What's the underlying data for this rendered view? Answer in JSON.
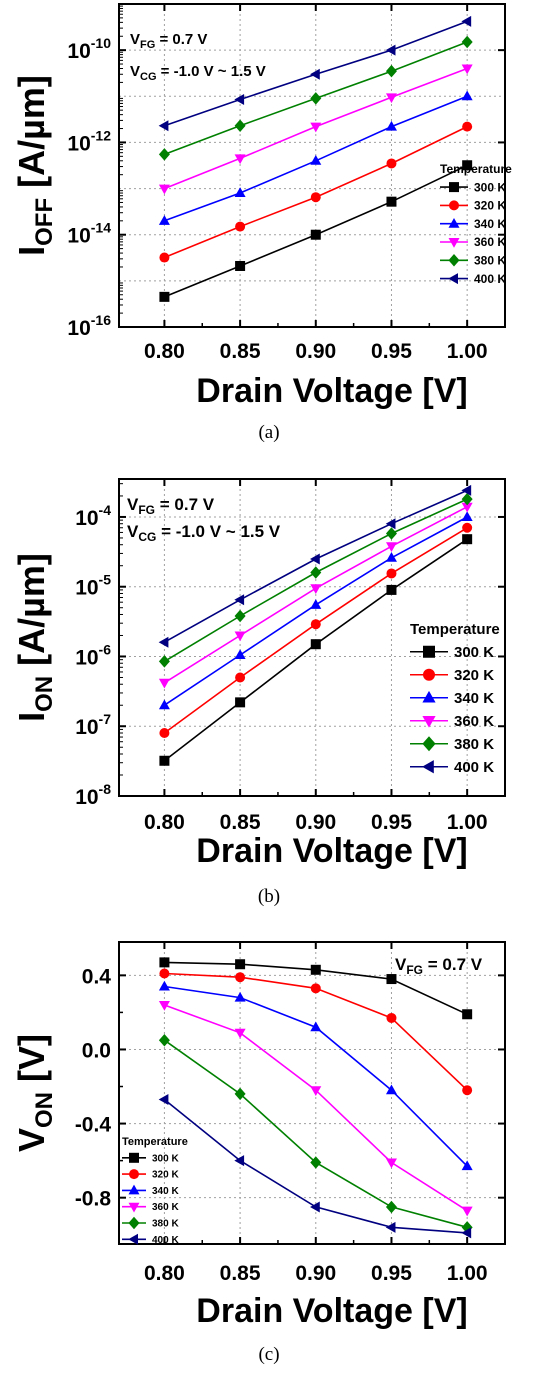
{
  "chart_data": [
    {
      "type": "line",
      "panel": "(a)",
      "caption": "(a)",
      "xlabel": "Drain Voltage [V]",
      "ylabel": "I",
      "ylabel_sub": "OFF",
      "ylabel_unit": " [A/µm]",
      "yscale": "log",
      "xlim": [
        0.77,
        1.025
      ],
      "ylim": [
        1e-16,
        1e-09
      ],
      "xticks": [
        0.8,
        0.85,
        0.9,
        0.95,
        1.0
      ],
      "xtick_labels": [
        "0.80",
        "0.85",
        "0.90",
        "0.95",
        "1.00"
      ],
      "yticks": [
        {
          "base": "10",
          "exp": "-16"
        },
        {
          "base": "10",
          "exp": "-14"
        },
        {
          "base": "10",
          "exp": "-12"
        },
        {
          "base": "10",
          "exp": "-10"
        }
      ],
      "grid": true,
      "annotations": [
        {
          "main": "V",
          "sub": "FG",
          "rest": " = 0.7 V"
        },
        {
          "main": "V",
          "sub": "CG",
          "rest": " = -1.0 V ~ 1.5 V"
        }
      ],
      "legend": {
        "title": "Temperature",
        "placement": "bottom-right"
      },
      "x": [
        0.8,
        0.85,
        0.9,
        0.95,
        1.0
      ],
      "series": [
        {
          "name": "300 K",
          "color": "#000000",
          "marker": "square",
          "values": [
            4.5e-16,
            2.1e-15,
            1e-14,
            5.2e-14,
            3.2e-13
          ]
        },
        {
          "name": "320 K",
          "color": "#ff0000",
          "marker": "circle",
          "values": [
            3.2e-15,
            1.5e-14,
            6.5e-14,
            3.5e-13,
            2.2e-12
          ]
        },
        {
          "name": "340 K",
          "color": "#0000ff",
          "marker": "triangle-up",
          "values": [
            2e-14,
            8e-14,
            4e-13,
            2.2e-12,
            1e-11
          ]
        },
        {
          "name": "360 K",
          "color": "#ff00ff",
          "marker": "triangle-down",
          "values": [
            1e-13,
            4.5e-13,
            2.2e-12,
            9.5e-12,
            4e-11
          ]
        },
        {
          "name": "380 K",
          "color": "#008000",
          "marker": "diamond",
          "values": [
            5.5e-13,
            2.3e-12,
            9e-12,
            3.5e-11,
            1.5e-10
          ]
        },
        {
          "name": "400 K",
          "color": "#000080",
          "marker": "triangle-left",
          "values": [
            2.3e-12,
            8.5e-12,
            3e-11,
            1e-10,
            4.2e-10
          ]
        }
      ]
    },
    {
      "type": "line",
      "panel": "(b)",
      "caption": "(b)",
      "xlabel": "Drain Voltage [V]",
      "ylabel": "I",
      "ylabel_sub": "ON",
      "ylabel_unit": " [A/µm]",
      "yscale": "log",
      "xlim": [
        0.77,
        1.025
      ],
      "ylim": [
        1e-08,
        0.00035
      ],
      "xticks": [
        0.8,
        0.85,
        0.9,
        0.95,
        1.0
      ],
      "xtick_labels": [
        "0.80",
        "0.85",
        "0.90",
        "0.95",
        "1.00"
      ],
      "yticks": [
        {
          "base": "10",
          "exp": "-8"
        },
        {
          "base": "10",
          "exp": "-7"
        },
        {
          "base": "10",
          "exp": "-6"
        },
        {
          "base": "10",
          "exp": "-5"
        },
        {
          "base": "10",
          "exp": "-4"
        }
      ],
      "grid": true,
      "annotations": [
        {
          "main": "V",
          "sub": "FG",
          "rest": " = 0.7 V"
        },
        {
          "main": "V",
          "sub": "CG",
          "rest": " = -1.0 V ~ 1.5 V"
        }
      ],
      "legend": {
        "title": "Temperature",
        "placement": "bottom-right"
      },
      "x": [
        0.8,
        0.85,
        0.9,
        0.95,
        1.0
      ],
      "series": [
        {
          "name": "300 K",
          "color": "#000000",
          "marker": "square",
          "values": [
            3.2e-08,
            2.2e-07,
            1.5e-06,
            9e-06,
            4.8e-05
          ]
        },
        {
          "name": "320 K",
          "color": "#ff0000",
          "marker": "circle",
          "values": [
            8e-08,
            5e-07,
            2.9e-06,
            1.55e-05,
            7e-05
          ]
        },
        {
          "name": "340 K",
          "color": "#0000ff",
          "marker": "triangle-up",
          "values": [
            2e-07,
            1.05e-06,
            5.5e-06,
            2.6e-05,
            0.0001
          ]
        },
        {
          "name": "360 K",
          "color": "#ff00ff",
          "marker": "triangle-down",
          "values": [
            4.2e-07,
            2e-06,
            9.5e-06,
            3.8e-05,
            0.00014
          ]
        },
        {
          "name": "380 K",
          "color": "#008000",
          "marker": "diamond",
          "values": [
            8.5e-07,
            3.8e-06,
            1.6e-05,
            5.8e-05,
            0.00018
          ]
        },
        {
          "name": "400 K",
          "color": "#000080",
          "marker": "triangle-left",
          "values": [
            1.6e-06,
            6.5e-06,
            2.5e-05,
            8e-05,
            0.00024
          ]
        }
      ]
    },
    {
      "type": "line",
      "panel": "(c)",
      "caption": "(c)",
      "xlabel": "Drain Voltage [V]",
      "ylabel": "V",
      "ylabel_sub": "ON",
      "ylabel_unit": " [V]",
      "yscale": "linear",
      "xlim": [
        0.77,
        1.025
      ],
      "ylim": [
        -1.05,
        0.58
      ],
      "xticks": [
        0.8,
        0.85,
        0.9,
        0.95,
        1.0
      ],
      "xtick_labels": [
        "0.80",
        "0.85",
        "0.90",
        "0.95",
        "1.00"
      ],
      "yticks_linear": [
        0.4,
        0.0,
        -0.4,
        -0.8
      ],
      "ytick_labels": [
        "0.4",
        "0.0",
        "-0.4",
        "-0.8"
      ],
      "grid": true,
      "annotations": [
        {
          "main": "V",
          "sub": "FG",
          "rest": " = 0.7 V"
        }
      ],
      "legend": {
        "title": "Temperature",
        "placement": "bottom-left"
      },
      "x": [
        0.8,
        0.85,
        0.9,
        0.95,
        1.0
      ],
      "series": [
        {
          "name": "300 K",
          "color": "#000000",
          "marker": "square",
          "values": [
            0.47,
            0.46,
            0.43,
            0.38,
            0.19
          ]
        },
        {
          "name": "320 K",
          "color": "#ff0000",
          "marker": "circle",
          "values": [
            0.41,
            0.39,
            0.33,
            0.17,
            -0.22
          ]
        },
        {
          "name": "340 K",
          "color": "#0000ff",
          "marker": "triangle-up",
          "values": [
            0.34,
            0.28,
            0.12,
            -0.22,
            -0.63
          ]
        },
        {
          "name": "360 K",
          "color": "#ff00ff",
          "marker": "triangle-down",
          "values": [
            0.24,
            0.09,
            -0.22,
            -0.61,
            -0.87
          ]
        },
        {
          "name": "380 K",
          "color": "#008000",
          "marker": "diamond",
          "values": [
            0.05,
            -0.24,
            -0.61,
            -0.85,
            -0.96
          ]
        },
        {
          "name": "400 K",
          "color": "#000080",
          "marker": "triangle-left",
          "values": [
            -0.27,
            -0.6,
            -0.85,
            -0.96,
            -0.99
          ]
        }
      ]
    }
  ]
}
